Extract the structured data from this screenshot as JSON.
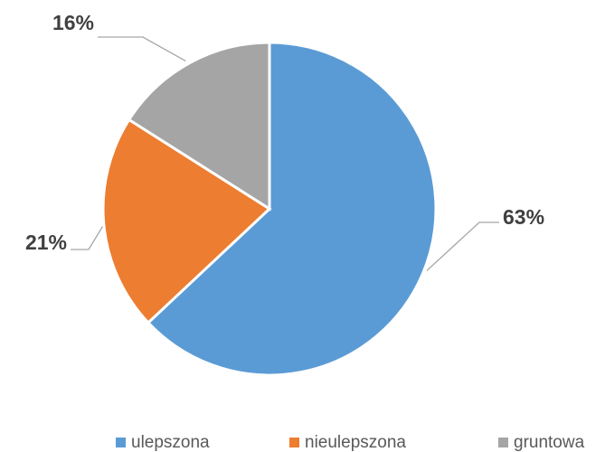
{
  "chart_data": {
    "type": "pie",
    "categories": [
      "ulepszona",
      "nieulepszona",
      "gruntowa"
    ],
    "values": [
      63,
      21,
      16
    ],
    "value_labels": [
      "63%",
      "21%",
      "16%"
    ],
    "colors": [
      "#5b9bd5",
      "#ed7d31",
      "#a5a5a5"
    ],
    "legend": "bottom"
  }
}
